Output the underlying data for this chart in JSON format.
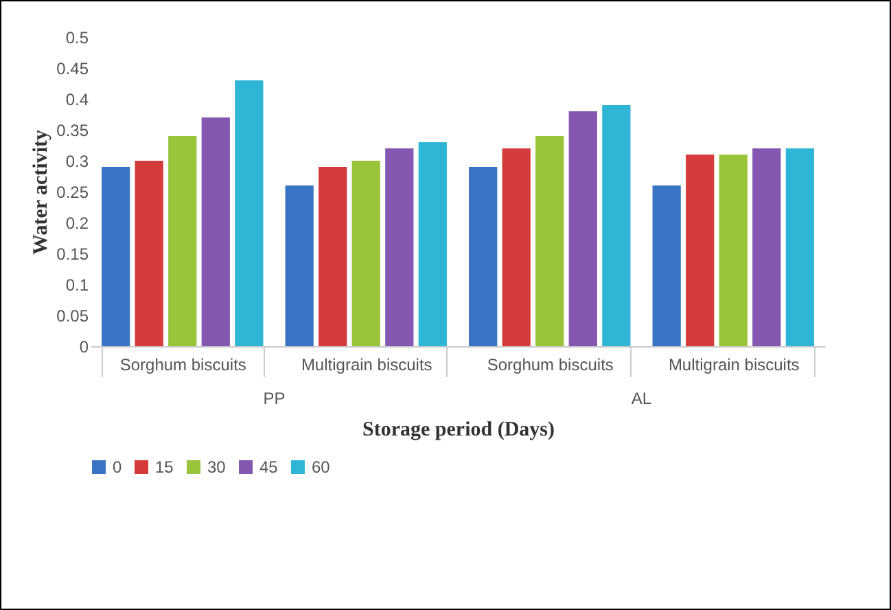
{
  "chart_data": {
    "type": "bar",
    "xlabel": "Storage period (Days)",
    "ylabel": "Water activity",
    "categories": [
      "Sorghum biscuits",
      "Multigrain biscuits",
      "Sorghum biscuits",
      "Multigrain biscuits"
    ],
    "annotations": [
      "PP",
      "AL"
    ],
    "series": [
      {
        "name": "0",
        "color": "#3a74c4",
        "values": [
          0.29,
          0.26,
          0.29,
          0.26
        ]
      },
      {
        "name": "15",
        "color": "#d63b3b",
        "values": [
          0.3,
          0.29,
          0.32,
          0.31
        ]
      },
      {
        "name": "30",
        "color": "#98c33a",
        "values": [
          0.34,
          0.3,
          0.34,
          0.31
        ]
      },
      {
        "name": "45",
        "color": "#8457b0",
        "values": [
          0.37,
          0.32,
          0.38,
          0.32
        ]
      },
      {
        "name": "60",
        "color": "#2fb6d6",
        "values": [
          0.43,
          0.33,
          0.39,
          0.32
        ]
      }
    ],
    "ylim": [
      0,
      0.5
    ],
    "yticks": [
      0,
      0.05,
      0.1,
      0.15,
      0.2,
      0.25,
      0.3,
      0.35,
      0.4,
      0.45,
      0.5
    ],
    "grid": false,
    "legend": "bottom"
  }
}
